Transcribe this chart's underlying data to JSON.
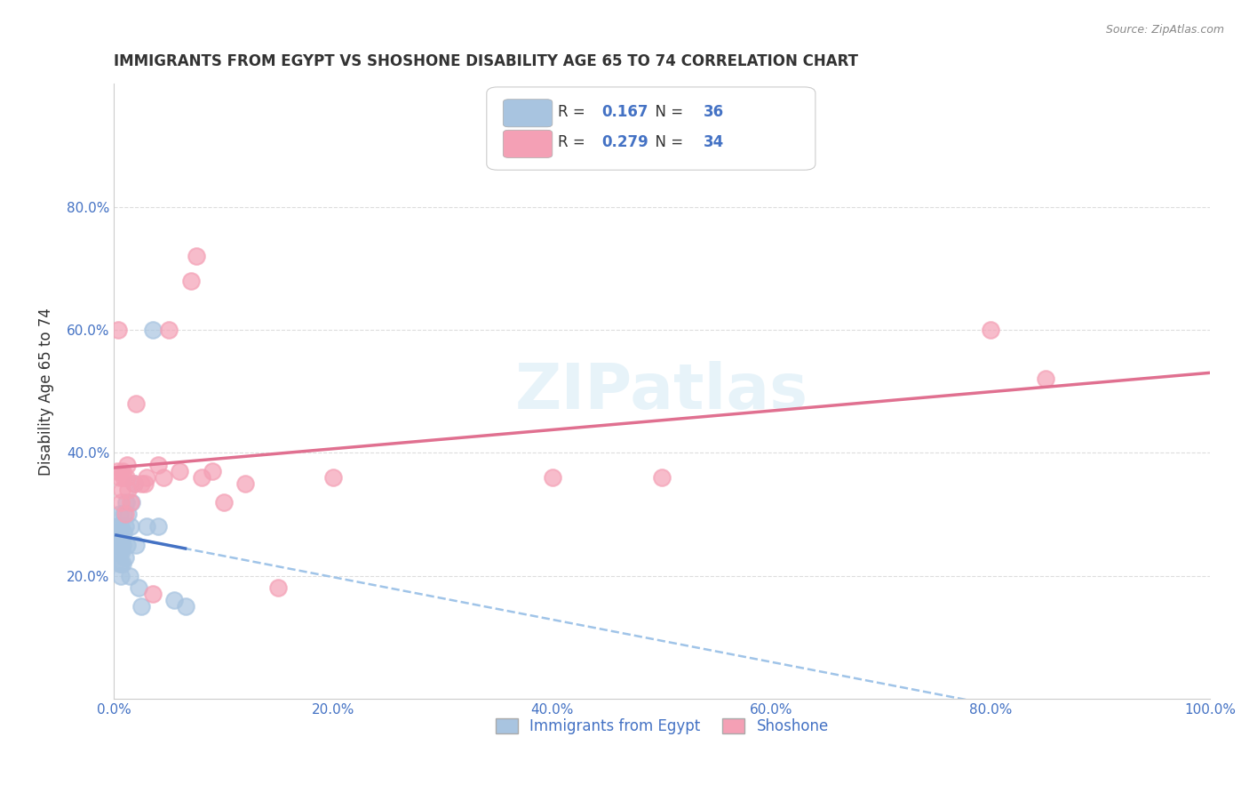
{
  "title": "IMMIGRANTS FROM EGYPT VS SHOSHONE DISABILITY AGE 65 TO 74 CORRELATION CHART",
  "source": "Source: ZipAtlas.com",
  "xlabel": "",
  "ylabel": "Disability Age 65 to 74",
  "xlim": [
    0,
    1.0
  ],
  "ylim": [
    0,
    1.0
  ],
  "xticks": [
    0.0,
    0.2,
    0.4,
    0.6,
    0.8,
    1.0
  ],
  "xticklabels": [
    "0.0%",
    "20.0%",
    "40.0%",
    "60.0%",
    "80.0%",
    "100.0%"
  ],
  "yticks": [
    0.2,
    0.4,
    0.6,
    0.8
  ],
  "yticklabels": [
    "20.0%",
    "40.0%",
    "60.0%",
    "80.0%"
  ],
  "legend1_r": "0.167",
  "legend1_n": "36",
  "legend2_r": "0.279",
  "legend2_n": "34",
  "series1_color": "#a8c4e0",
  "series2_color": "#f4a0b5",
  "trendline1_color": "#4472c4",
  "trendline2_color": "#e07090",
  "trendline1_dashed_color": "#a0c4e8",
  "background_color": "#ffffff",
  "grid_color": "#dddddd",
  "watermark": "ZIPatlas",
  "series1_label": "Immigrants from Egypt",
  "series2_label": "Shoshone",
  "series1_x": [
    0.002,
    0.003,
    0.003,
    0.004,
    0.004,
    0.004,
    0.005,
    0.005,
    0.005,
    0.005,
    0.006,
    0.006,
    0.006,
    0.007,
    0.007,
    0.008,
    0.008,
    0.009,
    0.009,
    0.01,
    0.01,
    0.011,
    0.012,
    0.013,
    0.014,
    0.015,
    0.016,
    0.018,
    0.02,
    0.022,
    0.025,
    0.03,
    0.035,
    0.04,
    0.055,
    0.065
  ],
  "series1_y": [
    0.26,
    0.27,
    0.28,
    0.24,
    0.25,
    0.28,
    0.22,
    0.24,
    0.26,
    0.3,
    0.2,
    0.22,
    0.28,
    0.24,
    0.26,
    0.22,
    0.25,
    0.27,
    0.3,
    0.23,
    0.28,
    0.32,
    0.25,
    0.3,
    0.2,
    0.28,
    0.32,
    0.35,
    0.25,
    0.18,
    0.15,
    0.28,
    0.6,
    0.28,
    0.16,
    0.15
  ],
  "series2_x": [
    0.003,
    0.004,
    0.005,
    0.006,
    0.007,
    0.008,
    0.009,
    0.01,
    0.011,
    0.012,
    0.013,
    0.015,
    0.018,
    0.02,
    0.025,
    0.028,
    0.03,
    0.035,
    0.04,
    0.045,
    0.05,
    0.06,
    0.07,
    0.075,
    0.08,
    0.09,
    0.1,
    0.12,
    0.15,
    0.2,
    0.4,
    0.5,
    0.8,
    0.85
  ],
  "series2_y": [
    0.37,
    0.6,
    0.36,
    0.32,
    0.34,
    0.37,
    0.36,
    0.3,
    0.36,
    0.38,
    0.34,
    0.32,
    0.35,
    0.48,
    0.35,
    0.35,
    0.36,
    0.17,
    0.38,
    0.36,
    0.6,
    0.37,
    0.68,
    0.72,
    0.36,
    0.37,
    0.32,
    0.35,
    0.18,
    0.36,
    0.36,
    0.36,
    0.6,
    0.52
  ]
}
